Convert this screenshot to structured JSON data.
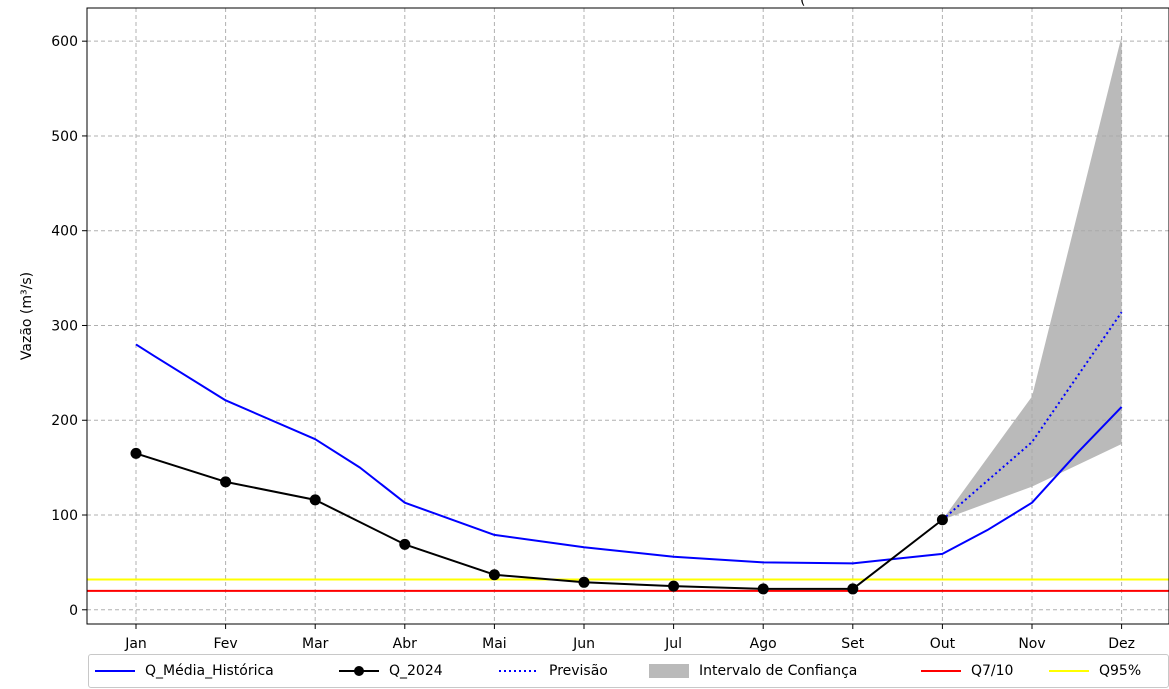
{
  "chart_data": {
    "type": "line",
    "title": "(",
    "ylabel": "Vazão (m³/s)",
    "xlabel": "",
    "categories": [
      "Jan",
      "Fev",
      "Mar",
      "Abr",
      "Mai",
      "Jun",
      "Jul",
      "Ago",
      "Set",
      "Out",
      "Nov",
      "Dez"
    ],
    "ylim": [
      -15,
      635
    ],
    "yticks": [
      0,
      100,
      200,
      300,
      400,
      500,
      600
    ],
    "grid": true,
    "legend_placement": "bottom",
    "series": [
      {
        "name": "Q_Média_Histórica",
        "color": "#0000ff",
        "style": "solid",
        "x": [
          0,
          0.2,
          1,
          2,
          2.5,
          3,
          4,
          5,
          6,
          7,
          8,
          8.3,
          9,
          9.5,
          10,
          10.5,
          11
        ],
        "values": [
          280,
          268,
          221,
          180,
          150,
          113,
          79,
          66,
          56,
          50,
          49,
          52,
          59,
          84,
          113,
          165,
          214
        ]
      },
      {
        "name": "Q_2024",
        "color": "#000000",
        "style": "solid-marker",
        "x": [
          0,
          1,
          2,
          3,
          4,
          5,
          6,
          7,
          8,
          9
        ],
        "values": [
          165,
          135,
          116,
          69,
          37,
          29,
          25,
          22,
          22,
          95
        ]
      },
      {
        "name": "Previsão",
        "color": "#0000ff",
        "style": "dotted",
        "x": [
          9,
          10,
          11
        ],
        "values": [
          95,
          177,
          314
        ]
      },
      {
        "name": "Intervalo de Confiança",
        "color": "#a9a9a9",
        "style": "band",
        "x": [
          9,
          10,
          11
        ],
        "lower": [
          95,
          130,
          175
        ],
        "upper": [
          95,
          225,
          605
        ]
      },
      {
        "name": "Q7/10",
        "color": "#ff0000",
        "style": "hline",
        "value": 20
      },
      {
        "name": "Q95%",
        "color": "#ffff00",
        "style": "hline",
        "value": 32
      }
    ]
  }
}
